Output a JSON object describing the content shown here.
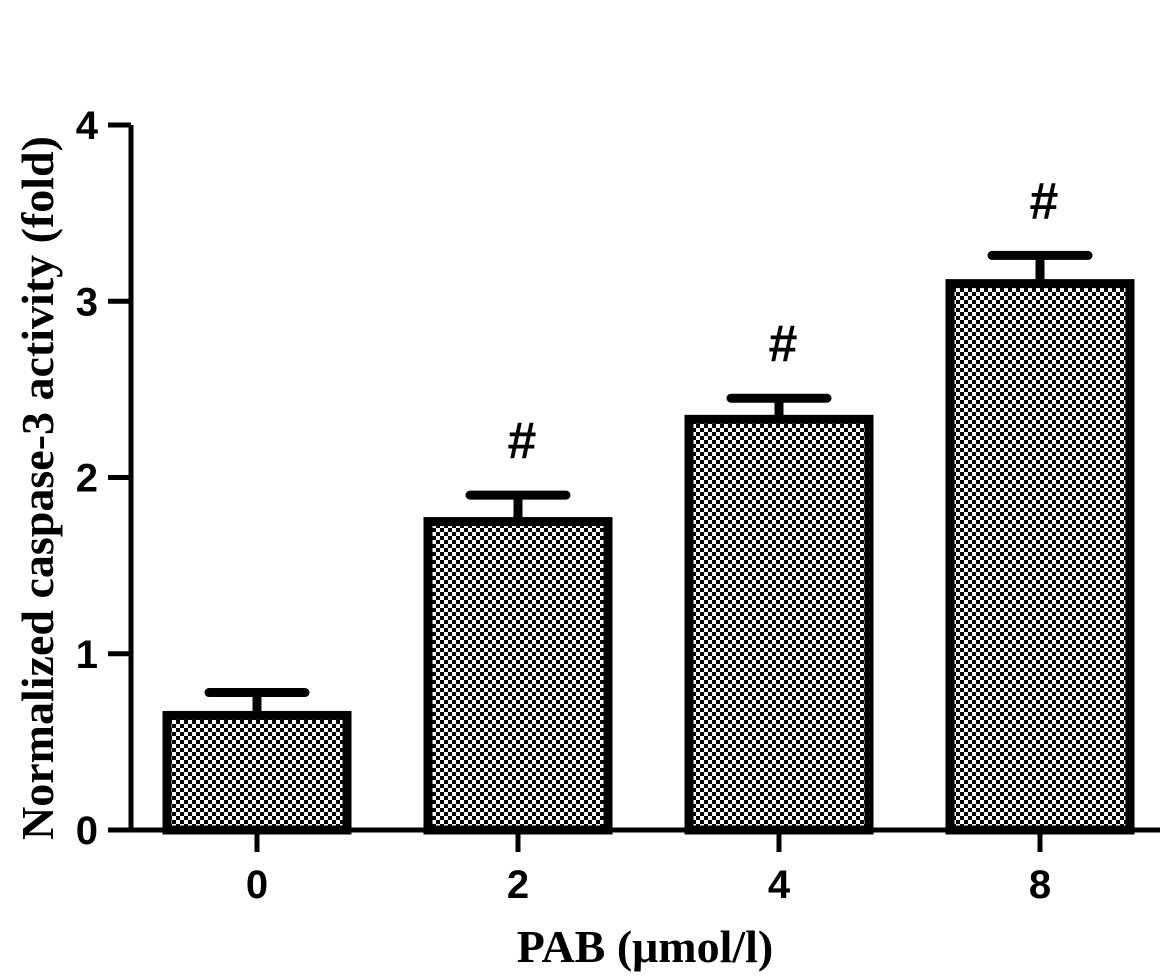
{
  "chart_data": {
    "type": "bar",
    "categories": [
      "0",
      "2",
      "4",
      "8"
    ],
    "values": [
      0.65,
      1.75,
      2.33,
      3.1
    ],
    "errors": [
      0.13,
      0.15,
      0.12,
      0.16
    ],
    "annotations": [
      "",
      "#",
      "#",
      "#"
    ],
    "xlabel": "PAB (μmol/l)",
    "ylabel": "Normalized caspase-3 activity (fold)",
    "ylim": [
      0,
      4
    ],
    "yticks": [
      "0",
      "1",
      "2",
      "3",
      "4"
    ],
    "grid": false,
    "legend": "none",
    "bar_fill": "checkered"
  }
}
